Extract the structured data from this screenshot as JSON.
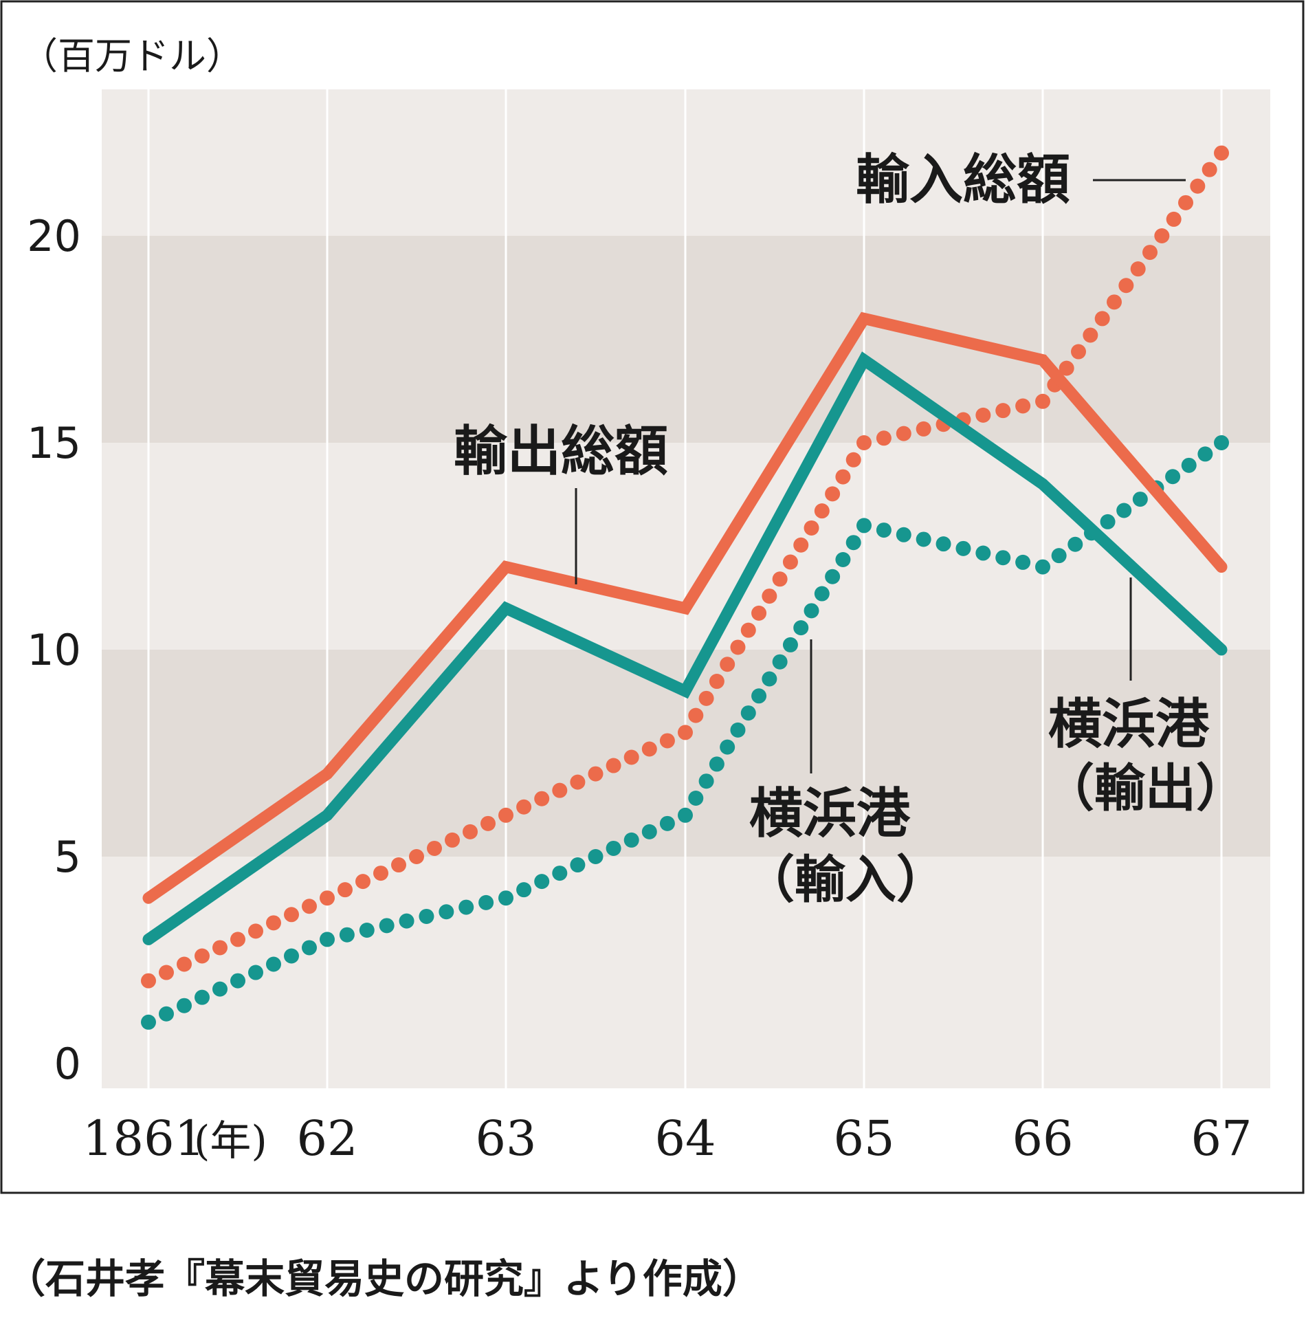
{
  "chart_data": {
    "type": "line",
    "unit_label": "（百万ドル）",
    "x": [
      "1861",
      "62",
      "63",
      "64",
      "65",
      "66",
      "67"
    ],
    "x_unit": "(年)",
    "ylim": [
      0,
      23
    ],
    "yticks": [
      "0",
      "5",
      "10",
      "15",
      "20"
    ],
    "grid": true,
    "series": [
      {
        "name": "輸出総額",
        "style": "solid",
        "color": "#ec6b4b",
        "values": [
          4,
          7,
          12,
          11,
          18,
          17,
          12
        ]
      },
      {
        "name": "横浜港（輸出）",
        "style": "solid",
        "color": "#16968f",
        "values": [
          3,
          6,
          11,
          9,
          17,
          14,
          10
        ]
      },
      {
        "name": "輸入総額",
        "style": "dotted",
        "color": "#ec6b4b",
        "values": [
          2,
          4,
          6,
          8,
          15,
          16,
          22
        ]
      },
      {
        "name": "横浜港（輸入）",
        "style": "dotted",
        "color": "#16968f",
        "values": [
          1,
          3,
          4,
          6,
          13,
          12,
          15
        ]
      }
    ],
    "annotations": {
      "export_total": "輸出総額",
      "import_total": "輸入総額",
      "yokohama_import_line1": "横浜港",
      "yokohama_import_line2": "（輸入）",
      "yokohama_export_line1": "横浜港",
      "yokohama_export_line2": "（輸出）"
    },
    "source": "（石井孝『幕末貿易史の研究』より作成）"
  },
  "colors": {
    "band_light": "#efebe8",
    "band_dark": "#e2dcd7",
    "gridline": "#ffffff",
    "frame": "#222222"
  }
}
